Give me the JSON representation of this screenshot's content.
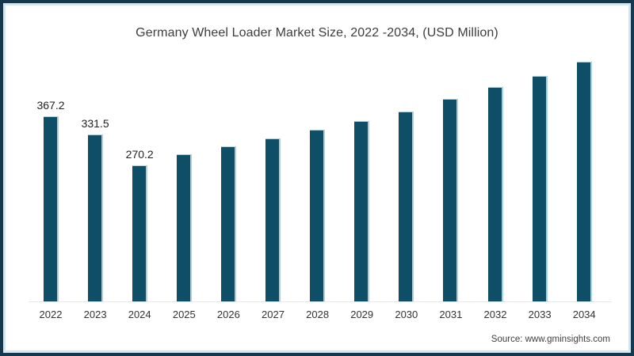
{
  "chart_data": {
    "type": "bar",
    "title": "Germany Wheel Loader Market Size, 2022 -2034, (USD Million)",
    "categories": [
      "2022",
      "2023",
      "2024",
      "2025",
      "2026",
      "2027",
      "2028",
      "2029",
      "2030",
      "2031",
      "2032",
      "2033",
      "2034"
    ],
    "values": [
      367.2,
      331.5,
      270.2,
      292,
      308,
      323,
      341,
      358,
      377,
      402,
      425,
      447,
      475
    ],
    "data_labels": [
      "367.2",
      "331.5",
      "270.2",
      "",
      "",
      "",
      "",
      "",
      "",
      "",
      "",
      "",
      ""
    ],
    "xlabel": "",
    "ylabel": "",
    "ylim": [
      0,
      500
    ],
    "grid": false,
    "legend": false,
    "bar_color": "#0f4e67",
    "bar_edge_color": "#a9cfdd",
    "axis_line_color": "#e7e7e7"
  },
  "footer": {
    "source_label": "Source: www.gminsights.com"
  },
  "colors": {
    "frame_border": "#16384f",
    "frame_inner_line": "#d3e7f1",
    "title_text": "#3d3d3d",
    "tick_text": "#333333",
    "data_label_text": "#1f1f1f",
    "source_text": "#404040",
    "background": "#ffffff"
  }
}
